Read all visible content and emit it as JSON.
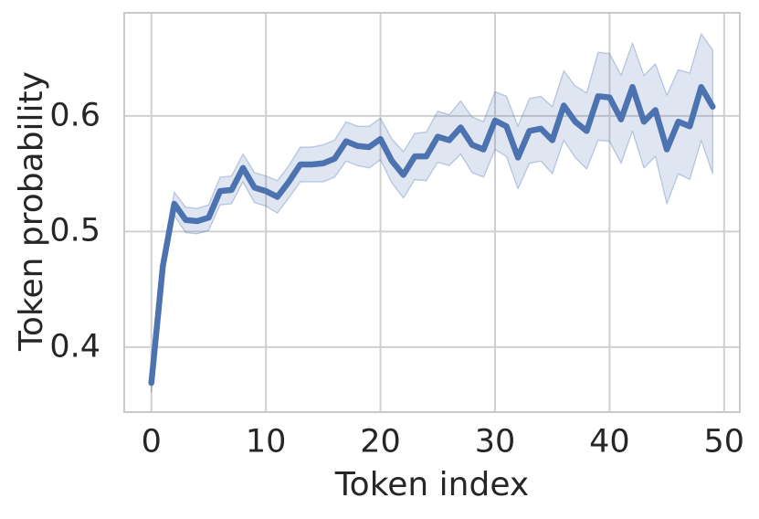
{
  "chart_data": {
    "type": "line",
    "title": "",
    "xlabel": "Token index",
    "ylabel": "Token probability",
    "x": [
      0,
      1,
      2,
      3,
      4,
      5,
      6,
      7,
      8,
      9,
      10,
      11,
      12,
      13,
      14,
      15,
      16,
      17,
      18,
      19,
      20,
      21,
      22,
      23,
      24,
      25,
      26,
      27,
      28,
      29,
      30,
      31,
      32,
      33,
      34,
      35,
      36,
      37,
      38,
      39,
      40,
      41,
      42,
      43,
      44,
      45,
      46,
      47,
      48,
      49
    ],
    "series": [
      {
        "values": [
          0.369,
          0.47,
          0.524,
          0.51,
          0.509,
          0.512,
          0.535,
          0.536,
          0.555,
          0.538,
          0.535,
          0.53,
          0.543,
          0.558,
          0.558,
          0.559,
          0.563,
          0.578,
          0.574,
          0.573,
          0.58,
          0.561,
          0.549,
          0.565,
          0.565,
          0.582,
          0.579,
          0.59,
          0.575,
          0.571,
          0.596,
          0.591,
          0.564,
          0.587,
          0.589,
          0.579,
          0.609,
          0.595,
          0.587,
          0.617,
          0.616,
          0.597,
          0.625,
          0.595,
          0.605,
          0.571,
          0.595,
          0.591,
          0.625,
          0.608
        ],
        "band_lower": [
          0.361,
          0.461,
          0.514,
          0.499,
          0.498,
          0.501,
          0.523,
          0.524,
          0.543,
          0.525,
          0.522,
          0.516,
          0.529,
          0.543,
          0.543,
          0.543,
          0.547,
          0.561,
          0.557,
          0.555,
          0.562,
          0.542,
          0.529,
          0.545,
          0.544,
          0.56,
          0.557,
          0.567,
          0.551,
          0.547,
          0.571,
          0.565,
          0.537,
          0.559,
          0.561,
          0.55,
          0.579,
          0.564,
          0.554,
          0.579,
          0.578,
          0.559,
          0.587,
          0.555,
          0.565,
          0.524,
          0.55,
          0.545,
          0.579,
          0.55
        ],
        "band_upper": [
          0.377,
          0.479,
          0.534,
          0.521,
          0.52,
          0.523,
          0.547,
          0.548,
          0.567,
          0.551,
          0.548,
          0.544,
          0.557,
          0.573,
          0.573,
          0.575,
          0.579,
          0.595,
          0.591,
          0.591,
          0.598,
          0.58,
          0.569,
          0.585,
          0.586,
          0.604,
          0.601,
          0.613,
          0.599,
          0.595,
          0.621,
          0.617,
          0.591,
          0.615,
          0.617,
          0.608,
          0.639,
          0.626,
          0.62,
          0.655,
          0.654,
          0.635,
          0.663,
          0.635,
          0.645,
          0.618,
          0.64,
          0.637,
          0.671,
          0.657
        ]
      }
    ],
    "x_ticks": [
      0,
      10,
      20,
      30,
      40,
      50
    ],
    "x_tick_labels": [
      "0",
      "10",
      "20",
      "30",
      "40",
      "50"
    ],
    "y_ticks": [
      0.4,
      0.5,
      0.6
    ],
    "y_tick_labels": [
      "0.4",
      "0.5",
      "0.6"
    ],
    "xlim": [
      -2.45,
      51.45
    ],
    "ylim": [
      0.343,
      0.69
    ],
    "grid": true,
    "legend": false,
    "colors": {
      "line": "#4c72b0",
      "band_fill": "rgba(76,114,176,0.18)",
      "band_edge": "rgba(76,114,176,0.35)",
      "grid": "#d0d0d0",
      "spine": "#c9c9c9",
      "text": "#262626",
      "background": "#ffffff"
    }
  }
}
